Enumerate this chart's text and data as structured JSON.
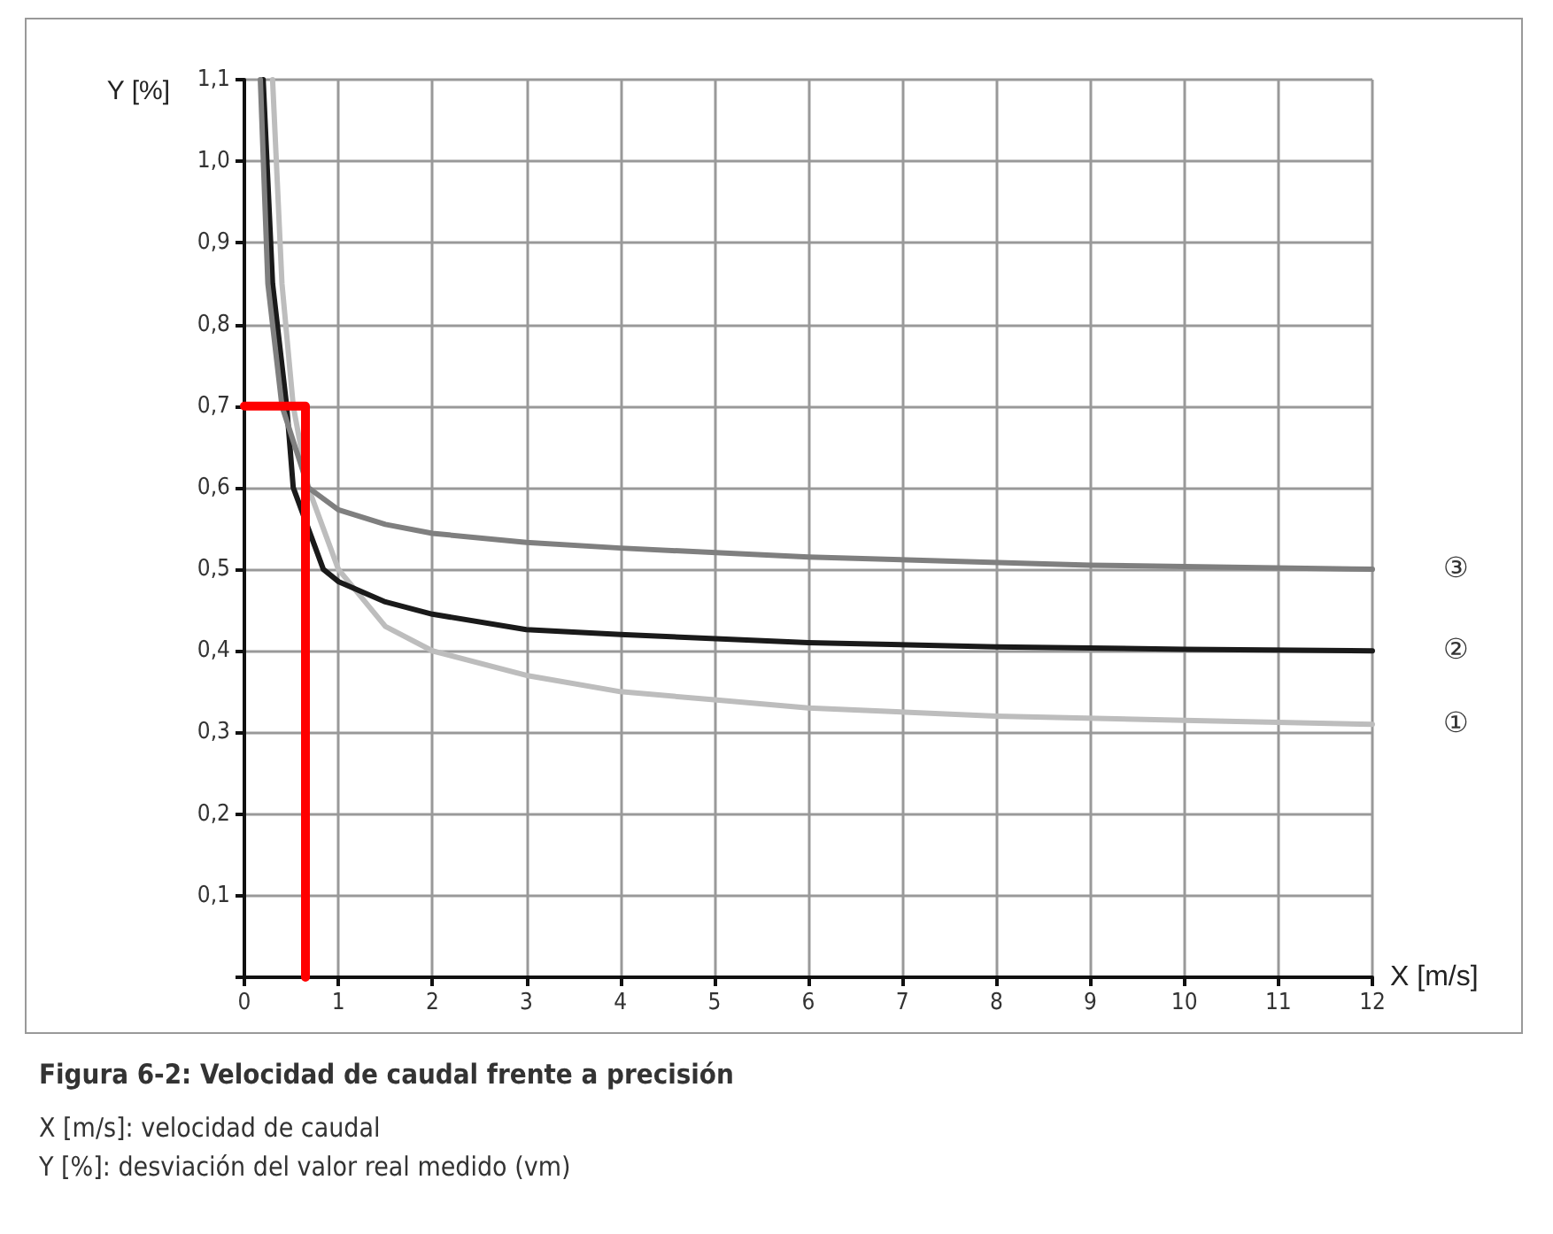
{
  "chart_data": {
    "type": "line",
    "title": "Figura 6-2: Velocidad de caudal frente a precisión",
    "xlabel": "X [m/s]",
    "ylabel": "Y [%]",
    "annotations": [
      "X [m/s]: velocidad de caudal",
      "Y [%]: desviación del valor real medido (vm)"
    ],
    "series": [
      {
        "name": "①",
        "color": "#bdbdbd",
        "x": [
          0.3,
          0.4,
          0.52,
          0.68,
          1,
          1.5,
          2,
          3,
          4,
          5,
          6,
          8,
          10,
          12
        ],
        "values": [
          1.1,
          0.85,
          0.7,
          0.6,
          0.5,
          0.43,
          0.4,
          0.37,
          0.35,
          0.34,
          0.33,
          0.32,
          0.315,
          0.31
        ]
      },
      {
        "name": "②",
        "color": "#1a1a1a",
        "x": [
          0.2,
          0.3,
          0.45,
          0.52,
          0.84,
          1,
          1.5,
          2,
          3,
          4,
          6,
          8,
          10,
          12
        ],
        "values": [
          1.1,
          0.85,
          0.7,
          0.6,
          0.5,
          0.485,
          0.46,
          0.445,
          0.426,
          0.42,
          0.41,
          0.405,
          0.402,
          0.4
        ]
      },
      {
        "name": "③",
        "color": "#7f7f7f",
        "x": [
          0.17,
          0.25,
          0.4,
          0.68,
          1,
          1.5,
          2,
          3,
          4,
          6,
          9,
          12
        ],
        "values": [
          1.1,
          0.85,
          0.7,
          0.6,
          0.573,
          0.555,
          0.544,
          0.533,
          0.526,
          0.515,
          0.505,
          0.5
        ]
      },
      {
        "color": "#ff0000",
        "x": [
          0,
          0.65,
          0.65
        ],
        "values": [
          0.7,
          0.7,
          0
        ]
      }
    ],
    "xlim": [
      0,
      12
    ],
    "xticks": [
      0,
      1,
      2,
      3,
      4,
      5,
      6,
      7,
      8,
      9,
      10,
      11,
      12
    ],
    "ylim": [
      0,
      1.1
    ],
    "yticks": [
      {
        "value": 0,
        "label": null
      },
      {
        "value": 0.1,
        "label": "0,1"
      },
      {
        "value": 0.2,
        "label": "0,2"
      },
      {
        "value": 0.3,
        "label": "0,3"
      },
      {
        "value": 0.4,
        "label": "0,4"
      },
      {
        "value": 0.5,
        "label": "0,5"
      },
      {
        "value": 0.6,
        "label": "0,6"
      },
      {
        "value": 0.7,
        "label": "0,7"
      },
      {
        "value": 0.8,
        "label": "0,8"
      },
      {
        "value": 0.9,
        "label": "0,9"
      },
      {
        "value": 1.0,
        "label": "1,0"
      },
      {
        "value": 1.1,
        "label": "1,1"
      }
    ],
    "grid": true,
    "legend": false,
    "marker": "none",
    "line_style": "solid"
  }
}
